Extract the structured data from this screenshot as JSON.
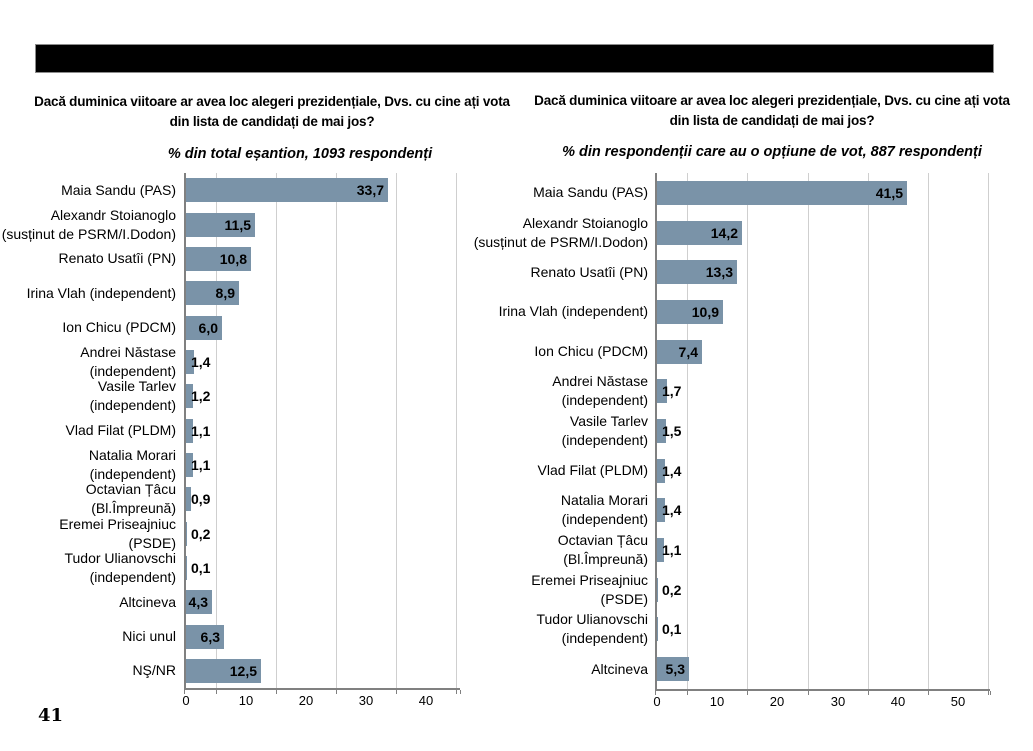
{
  "page_number": "41",
  "chart_data": [
    {
      "type": "bar",
      "orientation": "horizontal",
      "title": "Dacă duminica viitoare ar avea loc alegeri prezidențiale, Dvs. cu cine ați vota\ndin lista de candidați de mai jos?",
      "subtitle": "% din total eșantion, 1093 respondenți",
      "categories": [
        "Maia Sandu (PAS)",
        "Alexandr Stoianoglo\n(susținut de PSRM/I.Dodon)",
        "Renato Usatîi (PN)",
        "Irina Vlah (independent)",
        "Ion Chicu (PDCM)",
        "Andrei Năstase\n(independent)",
        "Vasile Tarlev\n(independent)",
        "Vlad Filat (PLDM)",
        "Natalia Morari\n(independent)",
        "Octavian Țâcu\n(Bl.Împreună)",
        "Eremei Priseajniuc\n(PSDE)",
        "Tudor Ulianovschi\n(independent)",
        "Altcineva",
        "Nici unul",
        "NŞ/NR"
      ],
      "values": [
        33.7,
        11.5,
        10.8,
        8.9,
        6.0,
        1.4,
        1.2,
        1.1,
        1.1,
        0.9,
        0.2,
        0.1,
        4.3,
        6.3,
        12.5
      ],
      "labels": [
        "33,7",
        "11,5",
        "10,8",
        "8,9",
        "6,0",
        "1,4",
        "1,2",
        "1,1",
        "1,1",
        "0,9",
        "0,2",
        "0,1",
        "4,3",
        "6,3",
        "12,5"
      ],
      "xticks": [
        0,
        10,
        20,
        30,
        40
      ],
      "xlim": [
        0,
        45.7
      ],
      "grid": true,
      "legend": false,
      "bar_color": "#7a93a8"
    },
    {
      "type": "bar",
      "orientation": "horizontal",
      "title": "Dacă duminica viitoare ar avea loc alegeri prezidențiale, Dvs. cu cine ați vota\ndin lista de candidați de mai jos?",
      "subtitle": "% din respondenții care au o opțiune de vot, 887 respondenți",
      "categories": [
        "Maia Sandu (PAS)",
        "Alexandr Stoianoglo\n(susținut de PSRM/I.Dodon)",
        "Renato Usatîi (PN)",
        "Irina Vlah (independent)",
        "Ion Chicu (PDCM)",
        "Andrei Năstase\n(independent)",
        "Vasile Tarlev\n(independent)",
        "Vlad Filat (PLDM)",
        "Natalia Morari\n(independent)",
        "Octavian Țâcu\n(Bl.Împreună)",
        "Eremei Priseajniuc\n(PSDE)",
        "Tudor Ulianovschi\n(independent)",
        "Altcineva"
      ],
      "values": [
        41.5,
        14.2,
        13.3,
        10.9,
        7.4,
        1.7,
        1.5,
        1.4,
        1.4,
        1.1,
        0.2,
        0.1,
        5.3
      ],
      "labels": [
        "41,5",
        "14,2",
        "13,3",
        "10,9",
        "7,4",
        "1,7",
        "1,5",
        "1,4",
        "1,4",
        "1,1",
        "0,2",
        "0,1",
        "5,3"
      ],
      "xticks": [
        0,
        10,
        20,
        30,
        40,
        50
      ],
      "xlim": [
        0,
        55.3
      ],
      "grid": true,
      "legend": false,
      "bar_color": "#7a93a8"
    }
  ]
}
